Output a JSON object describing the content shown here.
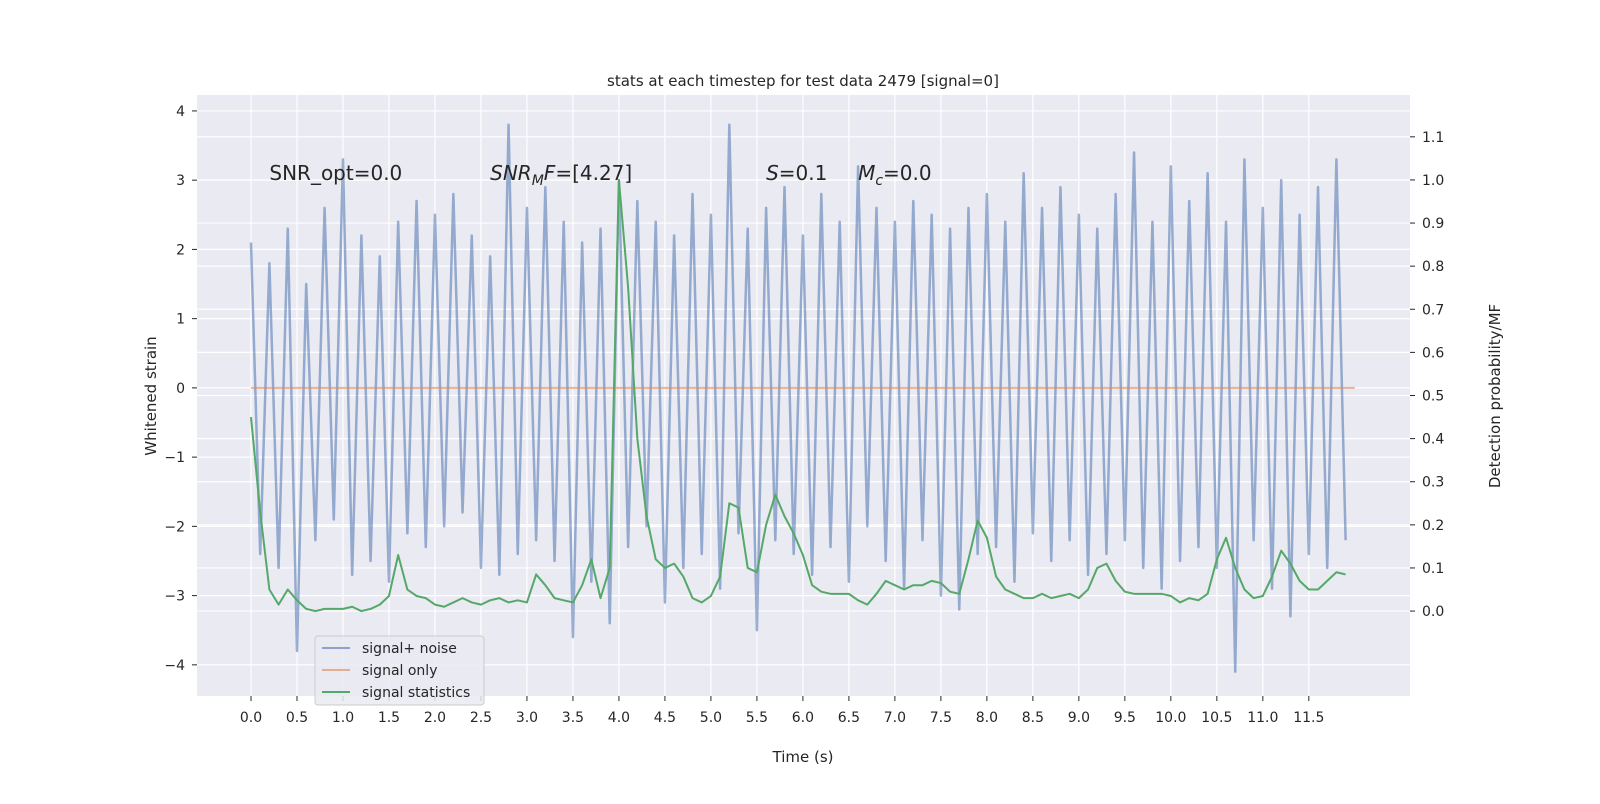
{
  "chart_data": {
    "type": "line",
    "title": "stats at each timestep for test data 2479 [signal=0]",
    "xlabel": "Time (s)",
    "ylabel": "Whitened strain",
    "y2label": "Detection probability/MF",
    "xlim": [
      -0.587,
      12.6
    ],
    "ylim": [
      -4.45,
      4.23
    ],
    "y2lim": [
      -0.197,
      1.197
    ],
    "grid": true,
    "legend": "lower left",
    "xticks": [
      {
        "value": 0,
        "label": "0.0"
      },
      {
        "value": 0.5,
        "label": "0.5"
      },
      {
        "value": 1,
        "label": "1.0"
      },
      {
        "value": 1.5,
        "label": "1.5"
      },
      {
        "value": 2,
        "label": "2.0"
      },
      {
        "value": 2.5,
        "label": "2.5"
      },
      {
        "value": 3,
        "label": "3.0"
      },
      {
        "value": 3.5,
        "label": "3.5"
      },
      {
        "value": 4,
        "label": "4.0"
      },
      {
        "value": 4.5,
        "label": "4.5"
      },
      {
        "value": 5,
        "label": "5.0"
      },
      {
        "value": 5.5,
        "label": "5.5"
      },
      {
        "value": 6,
        "label": "6.0"
      },
      {
        "value": 6.5,
        "label": "6.5"
      },
      {
        "value": 7,
        "label": "7.0"
      },
      {
        "value": 7.5,
        "label": "7.5"
      },
      {
        "value": 8,
        "label": "8.0"
      },
      {
        "value": 8.5,
        "label": "8.5"
      },
      {
        "value": 9,
        "label": "9.0"
      },
      {
        "value": 9.5,
        "label": "9.5"
      },
      {
        "value": 10,
        "label": "10.0"
      },
      {
        "value": 10.5,
        "label": "10.5"
      },
      {
        "value": 11,
        "label": "11.0"
      },
      {
        "value": 11.5,
        "label": "11.5"
      }
    ],
    "yticks": [
      {
        "value": -4,
        "label": "−4"
      },
      {
        "value": -3,
        "label": "−3"
      },
      {
        "value": -2,
        "label": "−2"
      },
      {
        "value": -1,
        "label": "−1"
      },
      0,
      1,
      2,
      3,
      4
    ],
    "y2ticks": [
      {
        "value": 0,
        "label": "0.0"
      },
      {
        "value": 0.1,
        "label": "0.1"
      },
      {
        "value": 0.2,
        "label": "0.2"
      },
      {
        "value": 0.3,
        "label": "0.3"
      },
      {
        "value": 0.4,
        "label": "0.4"
      },
      {
        "value": 0.5,
        "label": "0.5"
      },
      {
        "value": 0.6,
        "label": "0.6"
      },
      {
        "value": 0.7,
        "label": "0.7"
      },
      {
        "value": 0.8,
        "label": "0.8"
      },
      {
        "value": 0.9,
        "label": "0.9"
      },
      {
        "value": 1,
        "label": "1.0"
      },
      {
        "value": 1.1,
        "label": "1.1"
      }
    ],
    "annotations": [
      {
        "text": "SNR_opt=0.0",
        "x": 0.2,
        "y": 3
      },
      {
        "text": "SNR",
        "sub": "M",
        "tail": "F=[4.27]",
        "x": 2.6,
        "y": 3
      },
      {
        "text": "S",
        "tail": "=0.1",
        "x": 5.6,
        "y": 3
      },
      {
        "text": "M",
        "sub": "c",
        "tail": "=0.0",
        "x": 6.6,
        "y": 3
      }
    ],
    "x": [
      0,
      0.1,
      0.2,
      0.3,
      0.4,
      0.5,
      0.6,
      0.7,
      0.8,
      0.9,
      1,
      1.1,
      1.2,
      1.3,
      1.4,
      1.5,
      1.6,
      1.7,
      1.8,
      1.9,
      2,
      2.1,
      2.2,
      2.3,
      2.4,
      2.5,
      2.6,
      2.7,
      2.8,
      2.9,
      3,
      3.1,
      3.2,
      3.3,
      3.4,
      3.5,
      3.6,
      3.7,
      3.8,
      3.9,
      4,
      4.1,
      4.2,
      4.3,
      4.4,
      4.5,
      4.6,
      4.7,
      4.8,
      4.9,
      5,
      5.1,
      5.2,
      5.3,
      5.4,
      5.5,
      5.6,
      5.7,
      5.8,
      5.9,
      6,
      6.1,
      6.2,
      6.3,
      6.4,
      6.5,
      6.6,
      6.7,
      6.8,
      6.9,
      7,
      7.1,
      7.2,
      7.3,
      7.4,
      7.5,
      7.6,
      7.7,
      7.8,
      7.9,
      8,
      8.1,
      8.2,
      8.3,
      8.4,
      8.5,
      8.6,
      8.7,
      8.8,
      8.9,
      9,
      9.1,
      9.2,
      9.3,
      9.4,
      9.5,
      9.6,
      9.7,
      9.8,
      9.9,
      10,
      10.1,
      10.2,
      10.3,
      10.4,
      10.5,
      10.6,
      10.7,
      10.8,
      10.9,
      11,
      11.1,
      11.2,
      11.3,
      11.4,
      11.5,
      11.6,
      11.7,
      11.8,
      11.9
    ],
    "series": [
      {
        "name": "signal+ noise",
        "color": "#4c72b0",
        "values": [
          2.1,
          -2.4,
          1.8,
          -2.6,
          2.3,
          -3.8,
          1.5,
          -2.2,
          2.6,
          -1.9,
          3.3,
          -2.7,
          2.2,
          -2.5,
          1.9,
          -2.8,
          2.4,
          -2.1,
          2.7,
          -2.3,
          2.5,
          -2.0,
          2.8,
          -1.8,
          2.2,
          -2.6,
          1.9,
          -2.7,
          3.8,
          -2.4,
          2.6,
          -2.2,
          2.9,
          -2.5,
          2.4,
          -3.6,
          2.1,
          -2.8,
          2.3,
          -3.4,
          3.0,
          -2.3,
          2.7,
          -2.0,
          2.4,
          -3.1,
          2.2,
          -2.6,
          2.8,
          -2.4,
          2.5,
          -2.9,
          3.8,
          -2.1,
          2.3,
          -3.5,
          2.6,
          -2.2,
          2.9,
          -2.4,
          2.2,
          -2.7,
          2.8,
          -2.3,
          2.4,
          -2.8,
          3.2,
          -2.0,
          2.6,
          -2.5,
          2.4,
          -2.9,
          2.7,
          -2.2,
          2.5,
          -3.0,
          2.3,
          -3.2,
          2.6,
          -2.4,
          2.8,
          -2.3,
          2.4,
          -2.8,
          3.1,
          -2.1,
          2.6,
          -2.5,
          2.9,
          -2.2,
          2.5,
          -2.7,
          2.3,
          -2.4,
          2.8,
          -2.2,
          3.4,
          -2.6,
          2.4,
          -2.9,
          3.2,
          -2.5,
          2.7,
          -2.3,
          3.1,
          -2.6,
          2.4,
          -4.1,
          3.3,
          -2.2,
          2.6,
          -2.9,
          3.0,
          -3.3,
          2.5,
          -2.4,
          2.9,
          -2.6,
          3.3,
          -2.2
        ]
      },
      {
        "name": "signal only",
        "color": "#dd8452",
        "x": [
          0,
          12
        ],
        "values": [
          0,
          0
        ]
      },
      {
        "name": "signal statistics",
        "color": "#55a868",
        "axis": "y2",
        "values": [
          0.45,
          0.23,
          0.05,
          0.015,
          0.05,
          0.025,
          0.005,
          0,
          0.005,
          0.005,
          0.005,
          0.01,
          0,
          0.005,
          0.015,
          0.035,
          0.13,
          0.05,
          0.035,
          0.03,
          0.015,
          0.01,
          0.02,
          0.03,
          0.02,
          0.015,
          0.025,
          0.03,
          0.02,
          0.025,
          0.02,
          0.085,
          0.06,
          0.03,
          0.025,
          0.02,
          0.06,
          0.12,
          0.03,
          0.1,
          1.0,
          0.75,
          0.4,
          0.22,
          0.12,
          0.1,
          0.11,
          0.08,
          0.03,
          0.02,
          0.035,
          0.08,
          0.25,
          0.24,
          0.1,
          0.09,
          0.2,
          0.27,
          0.22,
          0.18,
          0.13,
          0.06,
          0.045,
          0.04,
          0.04,
          0.04,
          0.025,
          0.015,
          0.04,
          0.07,
          0.06,
          0.05,
          0.06,
          0.06,
          0.07,
          0.065,
          0.045,
          0.04,
          0.12,
          0.21,
          0.17,
          0.08,
          0.05,
          0.04,
          0.03,
          0.03,
          0.04,
          0.03,
          0.035,
          0.04,
          0.03,
          0.05,
          0.1,
          0.11,
          0.07,
          0.045,
          0.04,
          0.04,
          0.04,
          0.04,
          0.035,
          0.02,
          0.03,
          0.025,
          0.04,
          0.12,
          0.17,
          0.1,
          0.05,
          0.03,
          0.035,
          0.08,
          0.14,
          0.11,
          0.07,
          0.05,
          0.05,
          0.07,
          0.09,
          0.085
        ]
      }
    ]
  }
}
